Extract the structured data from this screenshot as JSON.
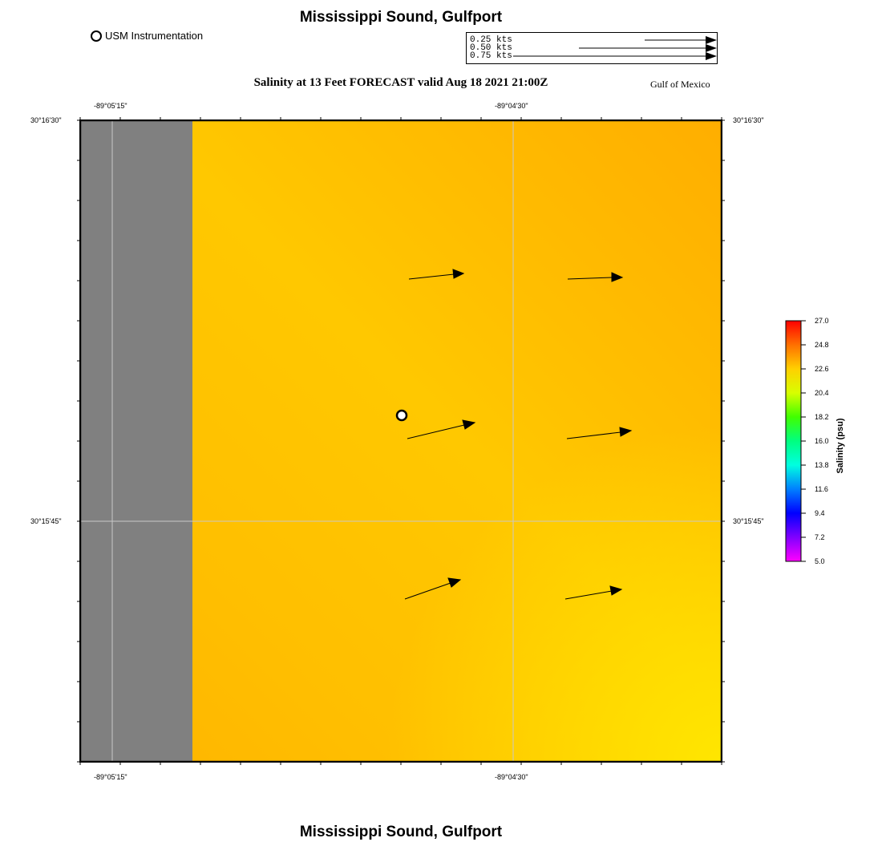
{
  "header": {
    "title": "Mississippi Sound, Gulfport",
    "subtitle": "Salinity at 13 Feet FORECAST valid Aug 18 2021 21:00Z",
    "region": "Gulf of Mexico"
  },
  "footer": {
    "title": "Mississippi Sound, Gulfport"
  },
  "station_legend": {
    "label": "USM Instrumentation",
    "icon": "circle-marker-icon"
  },
  "vector_key": {
    "entries": [
      {
        "label": "0.25 kts",
        "speed_kts": 0.25
      },
      {
        "label": "0.50 kts",
        "speed_kts": 0.5
      },
      {
        "label": "0.75 kts",
        "speed_kts": 0.75
      }
    ]
  },
  "axes": {
    "lon_ticks": [
      "-89°05'15\"",
      "-89°04'30\""
    ],
    "lat_ticks": [
      "30°16'30\"",
      "30°15'45\""
    ]
  },
  "colorbar": {
    "title": "Salinity (psu)",
    "ticks": [
      "27.0",
      "24.8",
      "22.6",
      "20.4",
      "18.2",
      "16.0",
      "13.8",
      "11.6",
      "9.4",
      "7.2",
      "5.0"
    ],
    "min": 5.0,
    "max": 27.0
  },
  "colors": {
    "land": "#808080",
    "water_high": "#ffb000",
    "water_low": "#ffe600",
    "grid": "#c8c8c8"
  }
}
